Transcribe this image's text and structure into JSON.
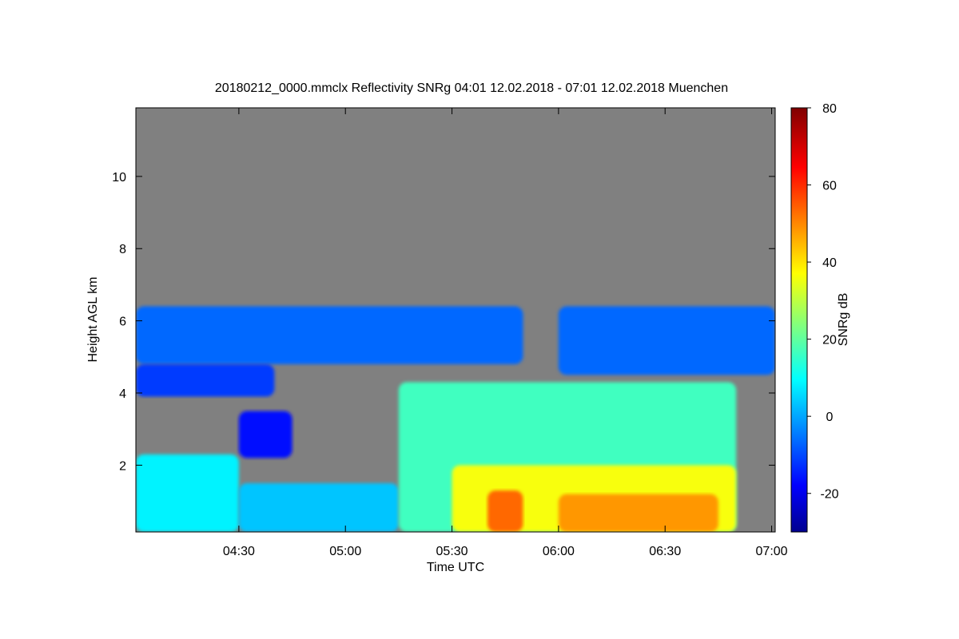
{
  "chart_data": {
    "type": "heatmap",
    "title": "20180212_0000.mmclx Reflectivity SNRg   04:01 12.02.2018 - 07:01 12.02.2018 Muenchen",
    "xlabel": "Time UTC",
    "ylabel": "Height AGL km",
    "xlim": [
      "04:01",
      "07:01"
    ],
    "ylim": [
      0.15,
      11.9
    ],
    "x_ticks": [
      "04:30",
      "05:00",
      "05:30",
      "06:00",
      "06:30",
      "07:00"
    ],
    "y_ticks": [
      2,
      4,
      6,
      8,
      10
    ],
    "colorbar": {
      "label": "SNRg dB",
      "range": [
        -30,
        80
      ],
      "ticks": [
        -20,
        0,
        20,
        40,
        60,
        80
      ],
      "colormap": "jet"
    },
    "background_color": "#808080",
    "echo_layers": [
      {
        "start": "04:01",
        "end": "04:30",
        "bottom_km": 0.15,
        "top_km": 2.3,
        "snr_db": 10
      },
      {
        "start": "04:30",
        "end": "05:15",
        "bottom_km": 0.15,
        "top_km": 1.5,
        "snr_db": 5
      },
      {
        "start": "05:15",
        "end": "06:50",
        "bottom_km": 0.15,
        "top_km": 4.3,
        "snr_db": 18
      },
      {
        "start": "05:30",
        "end": "06:50",
        "bottom_km": 0.15,
        "top_km": 2.0,
        "snr_db": 38
      },
      {
        "start": "05:40",
        "end": "05:50",
        "bottom_km": 0.15,
        "top_km": 1.3,
        "snr_db": 55
      },
      {
        "start": "06:00",
        "end": "06:45",
        "bottom_km": 0.15,
        "top_km": 1.2,
        "snr_db": 50
      },
      {
        "start": "04:01",
        "end": "05:50",
        "bottom_km": 4.8,
        "top_km": 6.4,
        "snr_db": -5
      },
      {
        "start": "06:00",
        "end": "07:01",
        "bottom_km": 4.5,
        "top_km": 6.4,
        "snr_db": -5
      },
      {
        "start": "04:01",
        "end": "04:40",
        "bottom_km": 3.9,
        "top_km": 4.8,
        "snr_db": -10
      },
      {
        "start": "04:30",
        "end": "04:45",
        "bottom_km": 2.2,
        "top_km": 3.5,
        "snr_db": -15
      }
    ]
  }
}
